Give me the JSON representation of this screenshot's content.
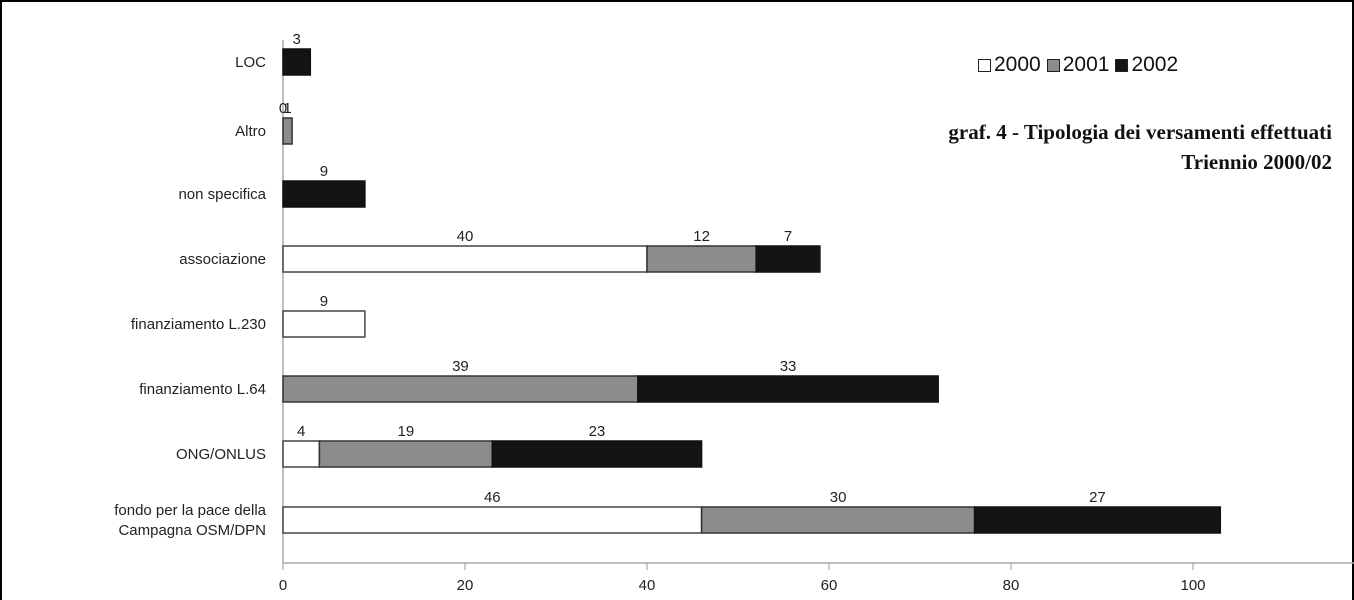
{
  "chart_data": {
    "type": "bar",
    "orientation": "horizontal",
    "stacked": true,
    "title": "graf. 4 - Tipologia dei versamenti effettuati",
    "subtitle": "Triennio 2000/02",
    "categories": [
      "LOC",
      "Altro",
      "non specifica",
      "associazione",
      "finanziamento L.230",
      "finanziamento L.64",
      "ONG/ONLUS",
      "fondo per la pace della Campagna OSM/DPN"
    ],
    "category_lines": [
      [
        "LOC"
      ],
      [
        "Altro"
      ],
      [
        "non specifica"
      ],
      [
        "associazione"
      ],
      [
        "finanziamento L.230"
      ],
      [
        "finanziamento L.64"
      ],
      [
        "ONG/ONLUS"
      ],
      [
        "fondo per la pace della",
        "Campagna OSM/DPN"
      ]
    ],
    "series": [
      {
        "name": "2000",
        "color": "#ffffff",
        "values": [
          0,
          0,
          0,
          40,
          9,
          0,
          4,
          46
        ]
      },
      {
        "name": "2001",
        "color": "#8c8c8c",
        "values": [
          0,
          1,
          0,
          12,
          0,
          39,
          19,
          30
        ]
      },
      {
        "name": "2002",
        "color": "#141414",
        "values": [
          3,
          0,
          9,
          7,
          0,
          33,
          23,
          27
        ]
      }
    ],
    "data_labels": [
      [
        "",
        "",
        "3"
      ],
      [
        "0",
        "1",
        ""
      ],
      [
        "",
        "",
        "9"
      ],
      [
        "40",
        "12",
        "7"
      ],
      [
        "9",
        "",
        ""
      ],
      [
        "",
        "39",
        "33"
      ],
      [
        "4",
        "19",
        "23"
      ],
      [
        "46",
        "30",
        "27"
      ]
    ],
    "xlim": [
      0,
      115
    ],
    "xticks": [
      0,
      20,
      40,
      60,
      80,
      100
    ],
    "xlabel": "",
    "ylabel": "",
    "grid": false,
    "legend_position": "top-right"
  }
}
